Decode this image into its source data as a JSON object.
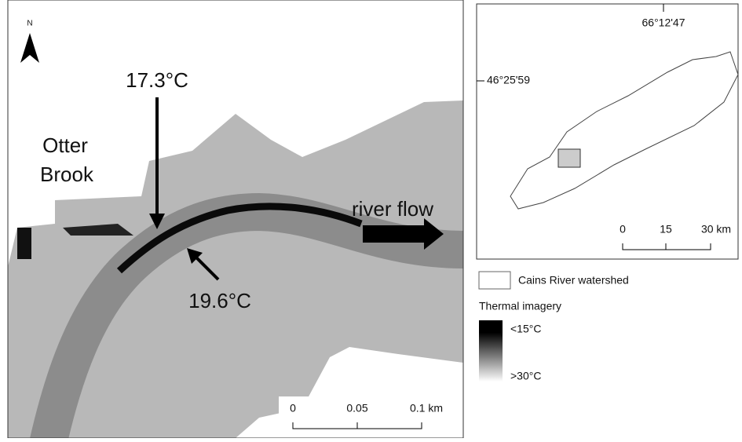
{
  "map": {
    "north": "N",
    "annotations": {
      "site_upstream": "17.3°C",
      "site_downstream": "19.6°C",
      "tributary_line1": "Otter",
      "tributary_line2": "Brook",
      "flow": "river flow"
    },
    "scale_bar": [
      "0",
      "0.05",
      "0.1 km"
    ]
  },
  "inset": {
    "longitude": "66°12'47",
    "latitude": "46°25'59",
    "scale_bar": [
      "0",
      "15",
      "30 km"
    ]
  },
  "legend": {
    "watershed": "Cains River watershed",
    "thermal_title": "Thermal imagery",
    "cold": "<15°C",
    "warm": ">30°C"
  }
}
